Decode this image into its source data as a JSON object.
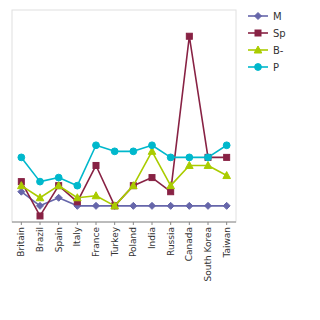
{
  "chart_data": {
    "type": "line",
    "categories": [
      "Britain",
      "Brazil",
      "Spain",
      "Italy",
      "France",
      "Turkey",
      "Poland",
      "India",
      "Russia",
      "Canada",
      "South Korea",
      "Taiwan"
    ],
    "series": [
      {
        "name": "M",
        "color": "#6666aa",
        "marker": "diamond",
        "values": [
          1.5,
          0.8,
          1.2,
          0.8,
          0.8,
          0.8,
          0.8,
          0.8,
          0.8,
          0.8,
          0.8,
          0.8
        ]
      },
      {
        "name": "Sp",
        "color": "#882244",
        "marker": "square",
        "values": [
          2.0,
          0.3,
          1.8,
          1.0,
          2.8,
          0.8,
          1.8,
          2.2,
          1.5,
          9.2,
          3.2,
          3.2
        ]
      },
      {
        "name": "B-",
        "color": "#aacc00",
        "marker": "triangle",
        "values": [
          1.8,
          1.2,
          1.8,
          1.2,
          1.3,
          0.8,
          1.8,
          3.5,
          1.8,
          2.8,
          2.8,
          2.3
        ]
      },
      {
        "name": "P",
        "color": "#00b8cc",
        "marker": "circle",
        "values": [
          3.2,
          2.0,
          2.2,
          1.8,
          3.8,
          3.5,
          3.5,
          3.8,
          3.2,
          3.2,
          3.2,
          3.8
        ]
      }
    ],
    "ylim": [
      0,
      10.5
    ],
    "grid": false,
    "legend": "right",
    "tick_labels": "x"
  }
}
